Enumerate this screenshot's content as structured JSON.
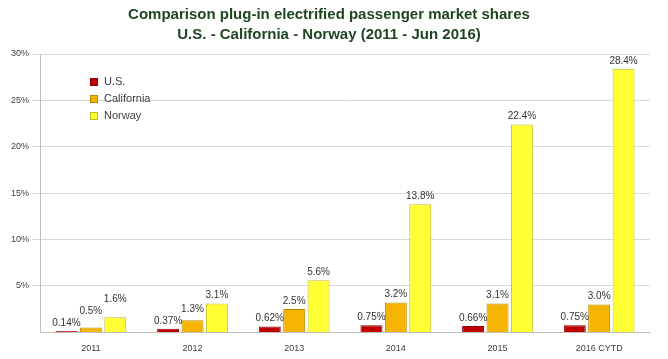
{
  "chart_data": {
    "type": "bar",
    "title": "Comparison plug-in electrified passenger market shares",
    "subtitle": "U.S. - California - Norway (2011 - Jun 2016)",
    "categories": [
      "2011",
      "2012",
      "2013",
      "2014",
      "2015",
      "2016 CYTD"
    ],
    "series": [
      {
        "name": "U.S.",
        "color": "#c00000",
        "values": [
          0.14,
          0.37,
          0.62,
          0.75,
          0.66,
          0.75
        ],
        "value_labels": [
          "0.14%",
          "0.37%",
          "0.62%",
          "0.75%",
          "0.66%",
          "0.75%"
        ]
      },
      {
        "name": "California",
        "color": "#f5b400",
        "values": [
          0.5,
          1.3,
          2.5,
          3.2,
          3.1,
          3.0
        ],
        "value_labels": [
          "0.5%",
          "1.3%",
          "2.5%",
          "3.2%",
          "3.1%",
          "3.0%"
        ]
      },
      {
        "name": "Norway",
        "color": "#ffff33",
        "values": [
          1.6,
          3.1,
          5.6,
          13.8,
          22.4,
          28.4
        ],
        "value_labels": [
          "1.6%",
          "3.1%",
          "5.6%",
          "13.8%",
          "22.4%",
          "28.4%"
        ]
      }
    ],
    "ylim": [
      0,
      30
    ],
    "yticks": [
      {
        "value": 5,
        "label": "5%"
      },
      {
        "value": 10,
        "label": "10%"
      },
      {
        "value": 15,
        "label": "15%"
      },
      {
        "value": 20,
        "label": "20%"
      },
      {
        "value": 25,
        "label": "25%"
      },
      {
        "value": 30,
        "label": "30%"
      }
    ],
    "grid": true,
    "legend": "top-left",
    "data_labels": true
  }
}
